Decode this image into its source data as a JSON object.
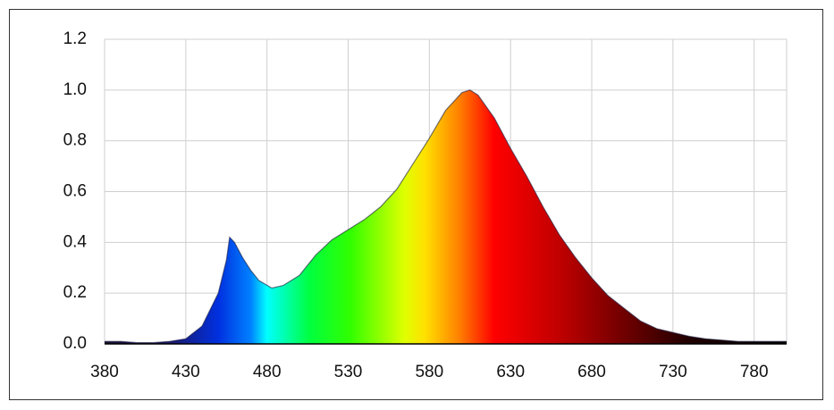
{
  "chart_data": {
    "type": "area",
    "x": [
      380,
      390,
      400,
      410,
      420,
      430,
      440,
      450,
      455,
      457,
      460,
      465,
      470,
      475,
      483,
      490,
      500,
      510,
      520,
      530,
      540,
      550,
      560,
      570,
      580,
      590,
      600,
      605,
      610,
      620,
      630,
      640,
      650,
      660,
      670,
      680,
      690,
      700,
      710,
      720,
      730,
      740,
      750,
      760,
      770,
      780,
      790,
      800
    ],
    "values": [
      0.01,
      0.01,
      0.005,
      0.005,
      0.01,
      0.02,
      0.07,
      0.2,
      0.33,
      0.42,
      0.4,
      0.34,
      0.29,
      0.25,
      0.22,
      0.23,
      0.27,
      0.35,
      0.41,
      0.45,
      0.49,
      0.54,
      0.61,
      0.71,
      0.81,
      0.92,
      0.99,
      1.0,
      0.98,
      0.89,
      0.77,
      0.66,
      0.54,
      0.43,
      0.34,
      0.26,
      0.19,
      0.14,
      0.09,
      0.06,
      0.045,
      0.03,
      0.02,
      0.015,
      0.01,
      0.01,
      0.01,
      0.01
    ],
    "xlim": [
      380,
      800
    ],
    "ylim": [
      0,
      1.2
    ],
    "xticks": [
      380,
      430,
      480,
      530,
      580,
      630,
      680,
      730,
      780
    ],
    "yticks": [
      {
        "value": 0,
        "label": "0.0"
      },
      {
        "value": 0.2,
        "label": "0.2"
      },
      {
        "value": 0.4,
        "label": "0.4"
      },
      {
        "value": 0.6,
        "label": "0.6"
      },
      {
        "value": 0.8,
        "label": "0.8"
      },
      {
        "value": 1,
        "label": "1.0"
      },
      {
        "value": 1.2,
        "label": "1.2"
      }
    ],
    "grid": true
  }
}
